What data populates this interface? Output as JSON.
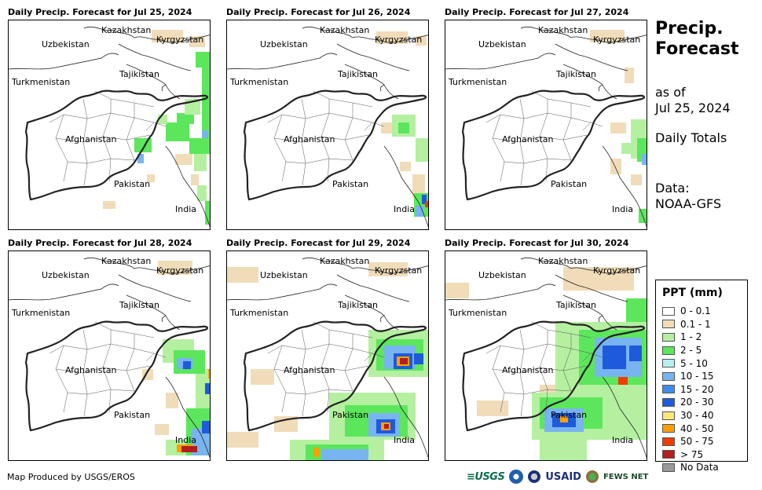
{
  "panels": [
    {
      "title": "Daily Precip. Forecast for Jul 25, 2024"
    },
    {
      "title": "Daily Precip. Forecast for Jul 26, 2024"
    },
    {
      "title": "Daily Precip. Forecast for Jul 27, 2024"
    },
    {
      "title": "Daily Precip. Forecast for Jul 28, 2024"
    },
    {
      "title": "Daily Precip. Forecast for Jul 29, 2024"
    },
    {
      "title": "Daily Precip. Forecast for Jul 30, 2024"
    }
  ],
  "map_labels": {
    "kazakhstan": "Kazakhstan",
    "kyrgyzstan": "Kyrgyzstan",
    "uzbekistan": "Uzbekistan",
    "tajikistan": "Tajikistan",
    "turkmenistan": "Turkmenistan",
    "afghanistan": "Afghanistan",
    "pakistan": "Pakistan",
    "india": "India"
  },
  "sidebar": {
    "title_line1": "Precip.",
    "title_line2": "Forecast",
    "asof_line1": "as of",
    "asof_line2": "Jul 25, 2024",
    "totals": "Daily Totals",
    "data_line1": "Data:",
    "data_line2": "NOAA-GFS"
  },
  "legend": {
    "title": "PPT (mm)",
    "items": [
      {
        "label": "0 - 0.1",
        "color": "#ffffff"
      },
      {
        "label": "0.1 - 1",
        "color": "#f0dcb8"
      },
      {
        "label": "1 - 2",
        "color": "#b4f0a0"
      },
      {
        "label": "2 - 5",
        "color": "#5ce65c"
      },
      {
        "label": "5 - 10",
        "color": "#b4f0f0"
      },
      {
        "label": "10 - 15",
        "color": "#78b4f0"
      },
      {
        "label": "15 - 20",
        "color": "#3c8cf0"
      },
      {
        "label": "20 - 30",
        "color": "#1e5adc"
      },
      {
        "label": "30 - 40",
        "color": "#ffe678"
      },
      {
        "label": "40 - 50",
        "color": "#ffa000"
      },
      {
        "label": "50 - 75",
        "color": "#f03c00"
      },
      {
        "label": "> 75",
        "color": "#b41e1e"
      },
      {
        "label": "No Data",
        "color": "#999999"
      }
    ]
  },
  "footer": {
    "credit": "Map Produced by USGS/EROS",
    "usgs": "≡USGS",
    "usaid": "USAID",
    "fews": "FEWS NET"
  },
  "logo_icons": [
    "noaa-logo-icon",
    "usaid-seal-icon",
    "globe-icon"
  ]
}
